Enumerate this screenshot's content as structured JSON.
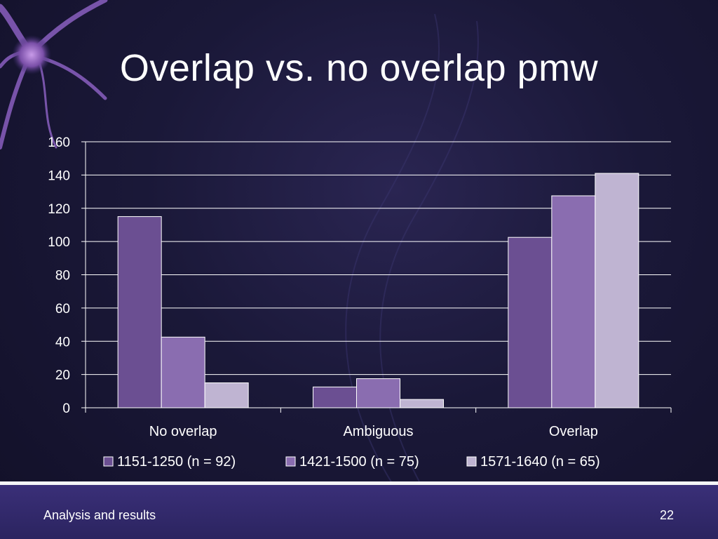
{
  "slide": {
    "title": "Overlap vs. no overlap pmw",
    "footer_text": "Analysis and results",
    "page_number": "22"
  },
  "colors": {
    "background": "#1a1838",
    "series": [
      "#6b4f92",
      "#8a6db0",
      "#bfb4d2"
    ],
    "grid": "#ffffff"
  },
  "chart_data": {
    "type": "bar",
    "title": "",
    "xlabel": "",
    "ylabel": "",
    "categories": [
      "No overlap",
      "Ambiguous",
      "Overlap"
    ],
    "series": [
      {
        "name": "1151-1250 (n = 92)",
        "values": [
          115,
          12.5,
          102.5
        ]
      },
      {
        "name": "1421-1500 (n = 75)",
        "values": [
          42.5,
          17.5,
          127.5
        ]
      },
      {
        "name": "1571-1640 (n = 65)",
        "values": [
          15,
          5,
          141
        ]
      }
    ],
    "ylim": [
      0,
      160
    ],
    "yticks": [
      0,
      20,
      40,
      60,
      80,
      100,
      120,
      140,
      160
    ],
    "grid": true,
    "legend_position": "bottom"
  }
}
